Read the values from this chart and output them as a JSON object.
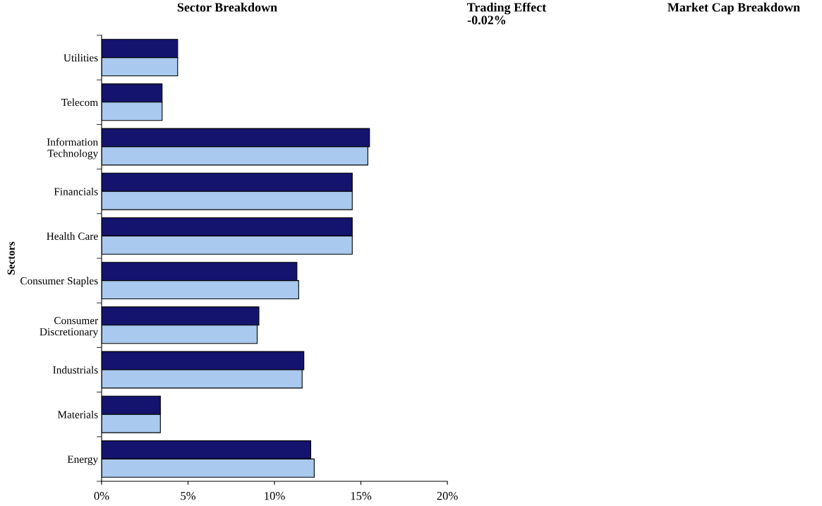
{
  "chart_data": {
    "type": "bar",
    "orientation": "horizontal",
    "title": "Sector Breakdown",
    "ylabel": "Sectors",
    "categories": [
      "Utilities",
      "Telecom",
      "Information\nTechnology",
      "Financials",
      "Health Care",
      "Consumer Staples",
      "Consumer\nDiscretionary",
      "Industrials",
      "Materials",
      "Energy"
    ],
    "series": [
      {
        "color": "#14146e",
        "values": [
          4.4,
          3.5,
          15.5,
          14.5,
          14.5,
          11.3,
          9.1,
          11.7,
          3.4,
          12.1
        ]
      },
      {
        "color": "#a9c9ee",
        "values": [
          4.4,
          3.5,
          15.4,
          14.5,
          14.5,
          11.4,
          9.0,
          11.6,
          3.4,
          12.3
        ]
      }
    ],
    "xlim": [
      0,
      20
    ],
    "xticks": [
      {
        "value": 0,
        "label": "0%"
      },
      {
        "value": 5,
        "label": "5%"
      },
      {
        "value": 10,
        "label": "10%"
      },
      {
        "value": 15,
        "label": "15%"
      },
      {
        "value": 20,
        "label": "20%"
      }
    ],
    "grid": false,
    "legend": false,
    "annotations": [
      "Trading Effect",
      "-0.02%",
      "Market Cap Breakdown"
    ]
  }
}
